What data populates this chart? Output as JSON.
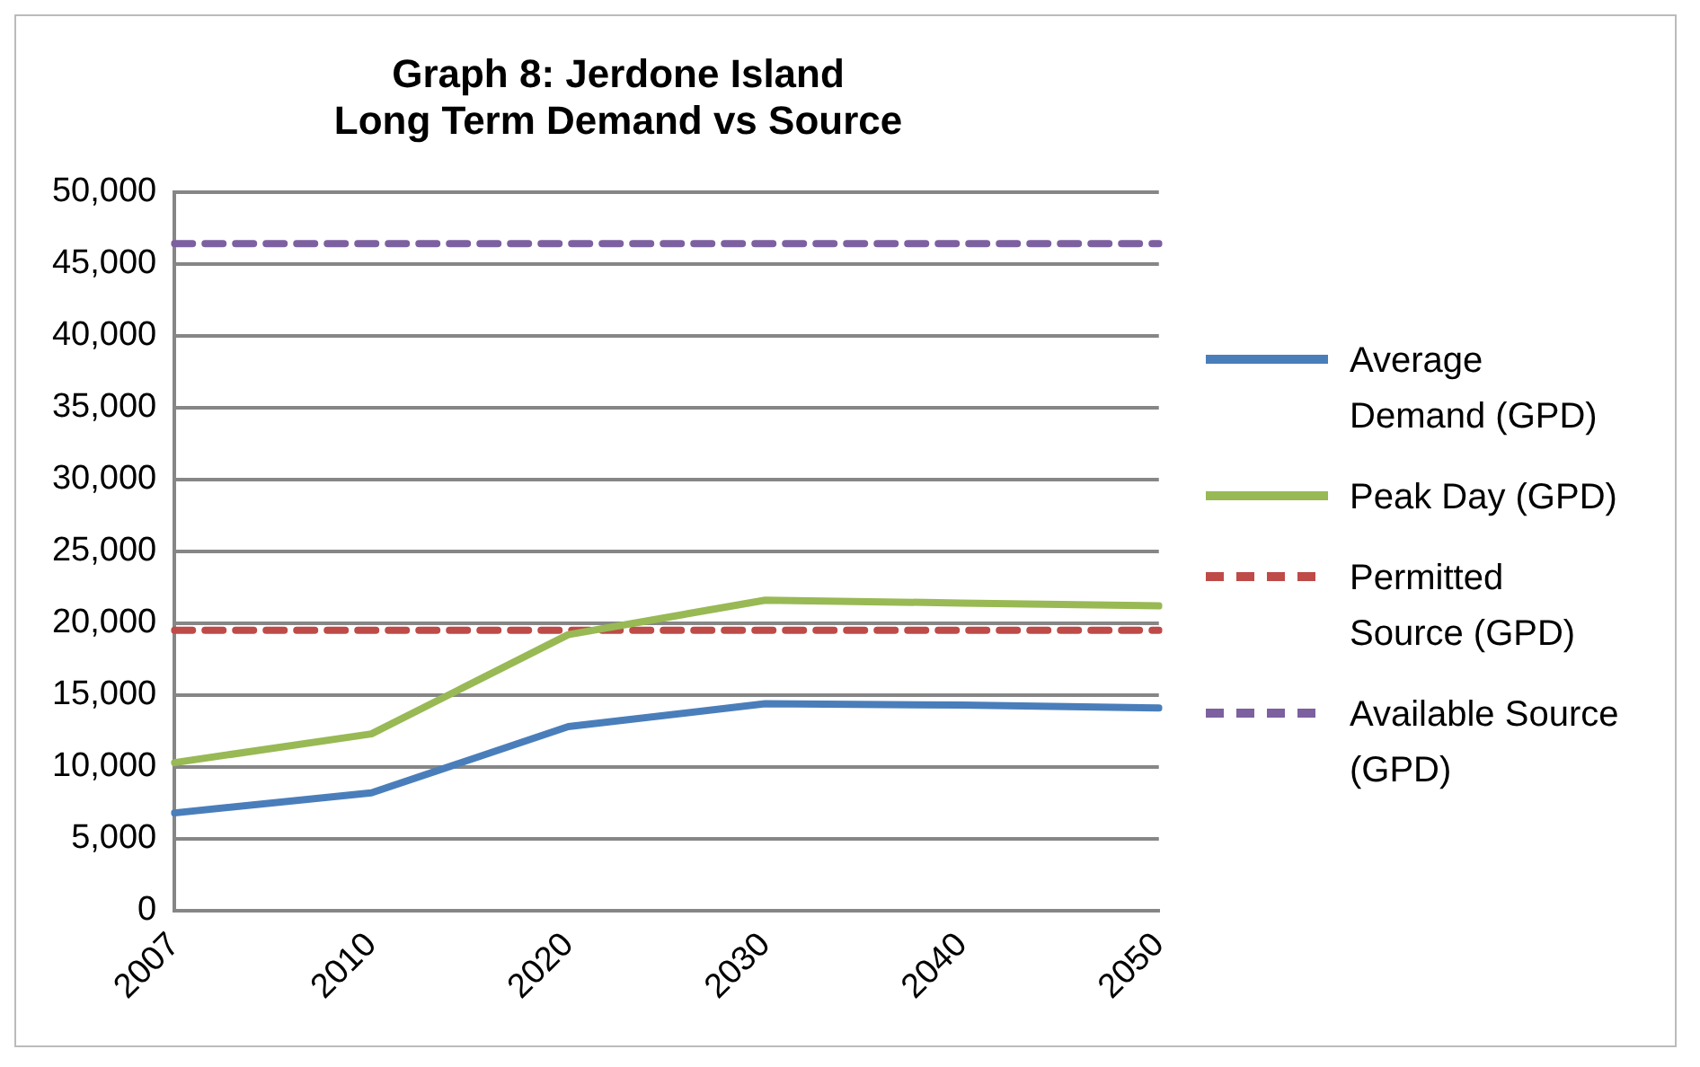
{
  "chart_data": {
    "type": "line",
    "title": "Graph 8: Jerdone Island\nLong Term Demand vs Source",
    "categories": [
      "2007",
      "2010",
      "2020",
      "2030",
      "2040",
      "2050"
    ],
    "series": [
      {
        "name": "Average Demand (GPD)",
        "color": "#4a7ebb",
        "values": [
          6800,
          8200,
          12800,
          14400,
          14300,
          14100
        ],
        "line_style": "solid"
      },
      {
        "name": "Peak Day (GPD)",
        "color": "#98b954",
        "values": [
          10300,
          12300,
          19200,
          21600,
          21400,
          21200
        ],
        "line_style": "solid"
      },
      {
        "name": "Permitted Source (GPD)",
        "color": "#be4b48",
        "values": [
          19500,
          19500,
          19500,
          19500,
          19500,
          19500
        ],
        "line_style": "dashed"
      },
      {
        "name": "Available Source (GPD)",
        "color": "#7d60a0",
        "values": [
          46400,
          46400,
          46400,
          46400,
          46400,
          46400
        ],
        "line_style": "dashed"
      }
    ],
    "ylim": [
      0,
      50000
    ],
    "yticks": [
      0,
      {
        "value": 5000,
        "label": "5,000"
      },
      {
        "value": 10000,
        "label": "10,000"
      },
      {
        "value": 15000,
        "label": "15,000"
      },
      {
        "value": 20000,
        "label": "20,000"
      },
      {
        "value": 25000,
        "label": "25,000"
      },
      {
        "value": 30000,
        "label": "30,000"
      },
      {
        "value": 35000,
        "label": "35,000"
      },
      {
        "value": 40000,
        "label": "40,000"
      },
      {
        "value": 45000,
        "label": "45,000"
      },
      {
        "value": 50000,
        "label": "50,000"
      }
    ],
    "grid": "y",
    "legend": "right",
    "marker": "none"
  }
}
